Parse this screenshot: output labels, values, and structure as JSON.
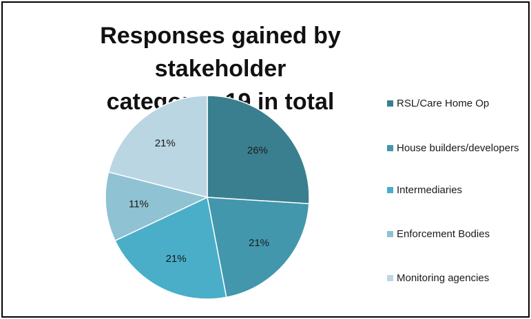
{
  "chart_data": {
    "type": "pie",
    "title": "Responses gained by stakeholder\ncategory - 19 in total",
    "slices": [
      {
        "name": "RSL/Care Home Op",
        "value": 26,
        "label": "26%",
        "color": "#3a7f8f"
      },
      {
        "name": "House builders/developers",
        "value": 21,
        "label": "21%",
        "color": "#4297ad"
      },
      {
        "name": "Intermediaries",
        "value": 21,
        "label": "21%",
        "color": "#4aaec8"
      },
      {
        "name": "Enforcement Bodies",
        "value": 11,
        "label": "11%",
        "color": "#8fc2d3"
      },
      {
        "name": "Monitoring agencies",
        "value": 21,
        "label": "21%",
        "color": "#bad6e2"
      }
    ],
    "legend_position": "right"
  }
}
